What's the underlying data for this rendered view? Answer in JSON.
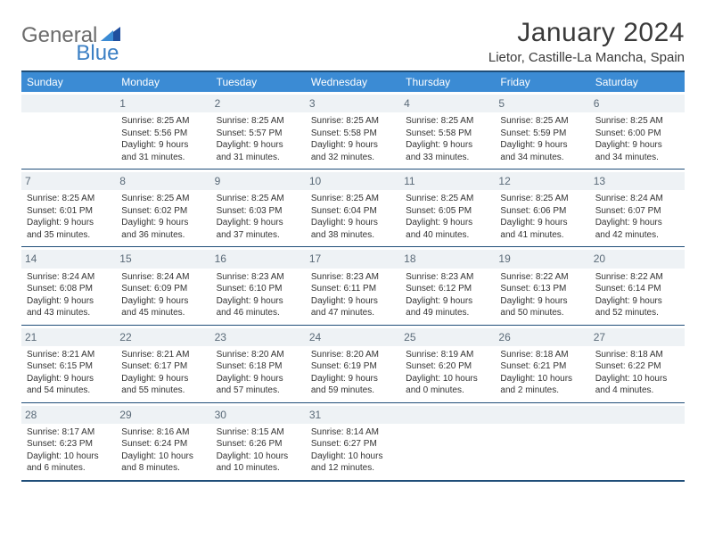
{
  "logo": {
    "text1": "General",
    "text2": "Blue"
  },
  "title": "January 2024",
  "location": "Lietor, Castille-La Mancha, Spain",
  "colors": {
    "header_bg": "#3b8bd4",
    "border": "#1f4e79",
    "daynum_bg": "#eef2f5",
    "text": "#333333",
    "logo_gray": "#6b6b6b",
    "logo_blue": "#3b7fc4"
  },
  "day_names": [
    "Sunday",
    "Monday",
    "Tuesday",
    "Wednesday",
    "Thursday",
    "Friday",
    "Saturday"
  ],
  "weeks": [
    [
      {
        "n": "",
        "t": ""
      },
      {
        "n": "1",
        "t": "Sunrise: 8:25 AM\nSunset: 5:56 PM\nDaylight: 9 hours and 31 minutes."
      },
      {
        "n": "2",
        "t": "Sunrise: 8:25 AM\nSunset: 5:57 PM\nDaylight: 9 hours and 31 minutes."
      },
      {
        "n": "3",
        "t": "Sunrise: 8:25 AM\nSunset: 5:58 PM\nDaylight: 9 hours and 32 minutes."
      },
      {
        "n": "4",
        "t": "Sunrise: 8:25 AM\nSunset: 5:58 PM\nDaylight: 9 hours and 33 minutes."
      },
      {
        "n": "5",
        "t": "Sunrise: 8:25 AM\nSunset: 5:59 PM\nDaylight: 9 hours and 34 minutes."
      },
      {
        "n": "6",
        "t": "Sunrise: 8:25 AM\nSunset: 6:00 PM\nDaylight: 9 hours and 34 minutes."
      }
    ],
    [
      {
        "n": "7",
        "t": "Sunrise: 8:25 AM\nSunset: 6:01 PM\nDaylight: 9 hours and 35 minutes."
      },
      {
        "n": "8",
        "t": "Sunrise: 8:25 AM\nSunset: 6:02 PM\nDaylight: 9 hours and 36 minutes."
      },
      {
        "n": "9",
        "t": "Sunrise: 8:25 AM\nSunset: 6:03 PM\nDaylight: 9 hours and 37 minutes."
      },
      {
        "n": "10",
        "t": "Sunrise: 8:25 AM\nSunset: 6:04 PM\nDaylight: 9 hours and 38 minutes."
      },
      {
        "n": "11",
        "t": "Sunrise: 8:25 AM\nSunset: 6:05 PM\nDaylight: 9 hours and 40 minutes."
      },
      {
        "n": "12",
        "t": "Sunrise: 8:25 AM\nSunset: 6:06 PM\nDaylight: 9 hours and 41 minutes."
      },
      {
        "n": "13",
        "t": "Sunrise: 8:24 AM\nSunset: 6:07 PM\nDaylight: 9 hours and 42 minutes."
      }
    ],
    [
      {
        "n": "14",
        "t": "Sunrise: 8:24 AM\nSunset: 6:08 PM\nDaylight: 9 hours and 43 minutes."
      },
      {
        "n": "15",
        "t": "Sunrise: 8:24 AM\nSunset: 6:09 PM\nDaylight: 9 hours and 45 minutes."
      },
      {
        "n": "16",
        "t": "Sunrise: 8:23 AM\nSunset: 6:10 PM\nDaylight: 9 hours and 46 minutes."
      },
      {
        "n": "17",
        "t": "Sunrise: 8:23 AM\nSunset: 6:11 PM\nDaylight: 9 hours and 47 minutes."
      },
      {
        "n": "18",
        "t": "Sunrise: 8:23 AM\nSunset: 6:12 PM\nDaylight: 9 hours and 49 minutes."
      },
      {
        "n": "19",
        "t": "Sunrise: 8:22 AM\nSunset: 6:13 PM\nDaylight: 9 hours and 50 minutes."
      },
      {
        "n": "20",
        "t": "Sunrise: 8:22 AM\nSunset: 6:14 PM\nDaylight: 9 hours and 52 minutes."
      }
    ],
    [
      {
        "n": "21",
        "t": "Sunrise: 8:21 AM\nSunset: 6:15 PM\nDaylight: 9 hours and 54 minutes."
      },
      {
        "n": "22",
        "t": "Sunrise: 8:21 AM\nSunset: 6:17 PM\nDaylight: 9 hours and 55 minutes."
      },
      {
        "n": "23",
        "t": "Sunrise: 8:20 AM\nSunset: 6:18 PM\nDaylight: 9 hours and 57 minutes."
      },
      {
        "n": "24",
        "t": "Sunrise: 8:20 AM\nSunset: 6:19 PM\nDaylight: 9 hours and 59 minutes."
      },
      {
        "n": "25",
        "t": "Sunrise: 8:19 AM\nSunset: 6:20 PM\nDaylight: 10 hours and 0 minutes."
      },
      {
        "n": "26",
        "t": "Sunrise: 8:18 AM\nSunset: 6:21 PM\nDaylight: 10 hours and 2 minutes."
      },
      {
        "n": "27",
        "t": "Sunrise: 8:18 AM\nSunset: 6:22 PM\nDaylight: 10 hours and 4 minutes."
      }
    ],
    [
      {
        "n": "28",
        "t": "Sunrise: 8:17 AM\nSunset: 6:23 PM\nDaylight: 10 hours and 6 minutes."
      },
      {
        "n": "29",
        "t": "Sunrise: 8:16 AM\nSunset: 6:24 PM\nDaylight: 10 hours and 8 minutes."
      },
      {
        "n": "30",
        "t": "Sunrise: 8:15 AM\nSunset: 6:26 PM\nDaylight: 10 hours and 10 minutes."
      },
      {
        "n": "31",
        "t": "Sunrise: 8:14 AM\nSunset: 6:27 PM\nDaylight: 10 hours and 12 minutes."
      },
      {
        "n": "",
        "t": ""
      },
      {
        "n": "",
        "t": ""
      },
      {
        "n": "",
        "t": ""
      }
    ]
  ]
}
